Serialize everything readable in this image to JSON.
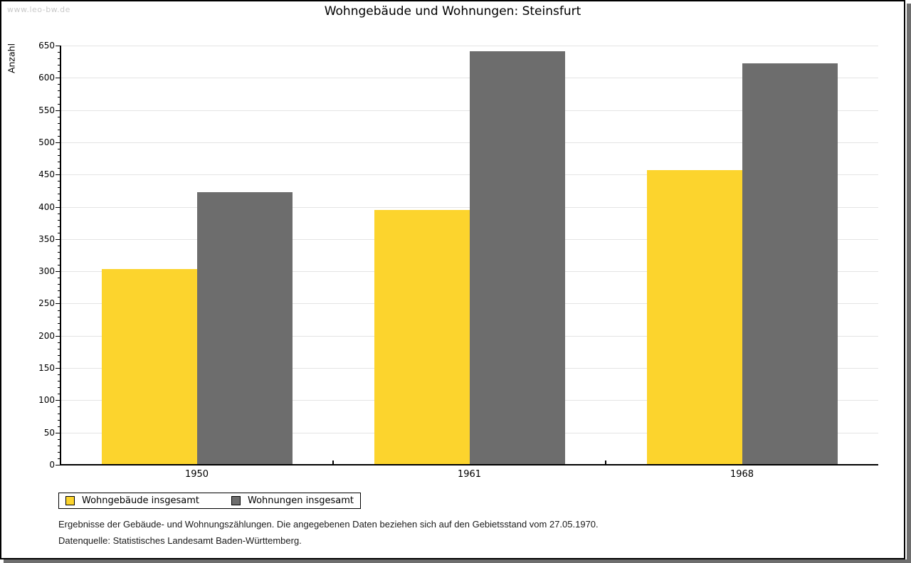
{
  "watermark": "www.leo-bw.de",
  "chart_data": {
    "type": "bar",
    "title": "Wohngebäude und Wohnungen: Steinsfurt",
    "ylabel": "Anzahl",
    "xlabel": "",
    "categories": [
      "1950",
      "1961",
      "1968"
    ],
    "series": [
      {
        "name": "Wohngebäude insgesamt",
        "color": "#FCD42D",
        "values": [
          303,
          395,
          457
        ]
      },
      {
        "name": "Wohnungen insgesamt",
        "color": "#6D6D6D",
        "values": [
          423,
          641,
          622
        ]
      }
    ],
    "ylim": [
      0,
      650
    ],
    "ytick_step": 50,
    "ytick_minor_step": 10,
    "grid": true,
    "legend_position": "bottom-left"
  },
  "footnotes": [
    "Ergebnisse der Gebäude- und Wohnungszählungen. Die angegebenen Daten beziehen sich auf den Gebietsstand vom 27.05.1970.",
    "Datenquelle: Statistisches Landesamt Baden-Württemberg."
  ],
  "colors": {
    "axis": "#000000",
    "gridline": "#E4E4E4",
    "watermark": "#C9C9C9",
    "frame_shadow": "#6E6E6E",
    "background": "#FFFFFF"
  }
}
